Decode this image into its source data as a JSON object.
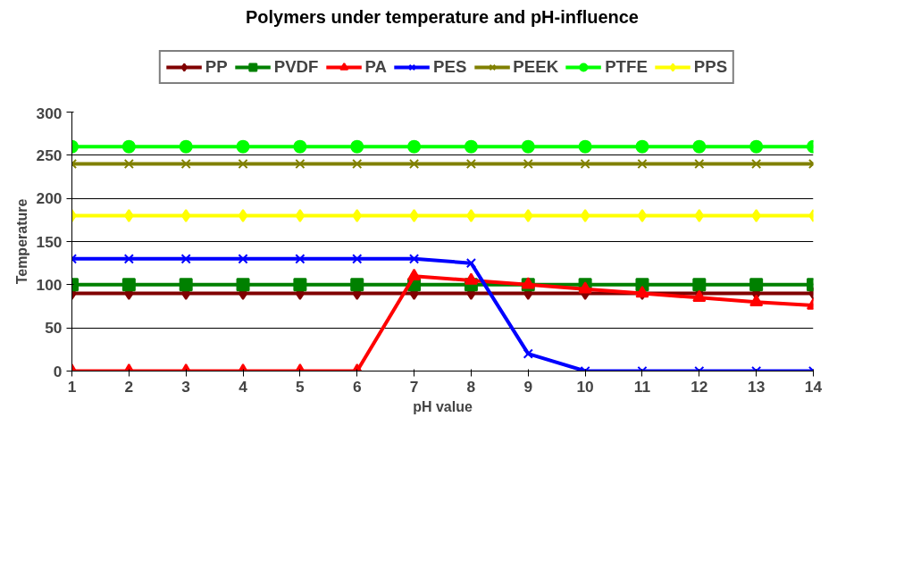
{
  "chart_data": {
    "type": "line",
    "title": "Polymers  under temperature and  pH-influence",
    "xlabel": "pH value",
    "ylabel": "Temperature",
    "x": [
      1,
      2,
      3,
      4,
      5,
      6,
      7,
      8,
      9,
      10,
      11,
      12,
      13,
      14
    ],
    "xlim": [
      1,
      14
    ],
    "xticks": [
      1,
      2,
      3,
      4,
      5,
      6,
      7,
      8,
      9,
      10,
      11,
      12,
      13,
      14
    ],
    "ylim": [
      0,
      300
    ],
    "yticks": [
      0,
      50,
      100,
      150,
      200,
      250,
      300
    ],
    "grid": "y",
    "legend": "top",
    "series": [
      {
        "name": "PP",
        "color": "#800000",
        "marker": "diamond",
        "values": [
          90,
          90,
          90,
          90,
          90,
          90,
          90,
          90,
          90,
          90,
          90,
          90,
          90,
          90
        ]
      },
      {
        "name": "PVDF",
        "color": "#008000",
        "marker": "square",
        "values": [
          100,
          100,
          100,
          100,
          100,
          100,
          100,
          100,
          100,
          100,
          100,
          100,
          100,
          100
        ]
      },
      {
        "name": "PA",
        "color": "#ff0000",
        "marker": "triangle",
        "values": [
          0,
          0,
          0,
          0,
          0,
          0,
          110,
          105,
          100,
          95,
          90,
          85,
          80,
          76
        ]
      },
      {
        "name": "PES",
        "color": "#0000ff",
        "marker": "cross",
        "values": [
          130,
          130,
          130,
          130,
          130,
          130,
          130,
          125,
          20,
          0,
          0,
          0,
          0,
          0
        ]
      },
      {
        "name": "PEEK",
        "color": "#808000",
        "marker": "cross",
        "values": [
          240,
          240,
          240,
          240,
          240,
          240,
          240,
          240,
          240,
          240,
          240,
          240,
          240,
          240
        ]
      },
      {
        "name": "PTFE",
        "color": "#00ff00",
        "marker": "circle",
        "values": [
          260,
          260,
          260,
          260,
          260,
          260,
          260,
          260,
          260,
          260,
          260,
          260,
          260,
          260
        ]
      },
      {
        "name": "PPS",
        "color": "#ffff00",
        "marker": "diamond",
        "values": [
          180,
          180,
          180,
          180,
          180,
          180,
          180,
          180,
          180,
          180,
          180,
          180,
          180,
          180
        ]
      }
    ]
  }
}
